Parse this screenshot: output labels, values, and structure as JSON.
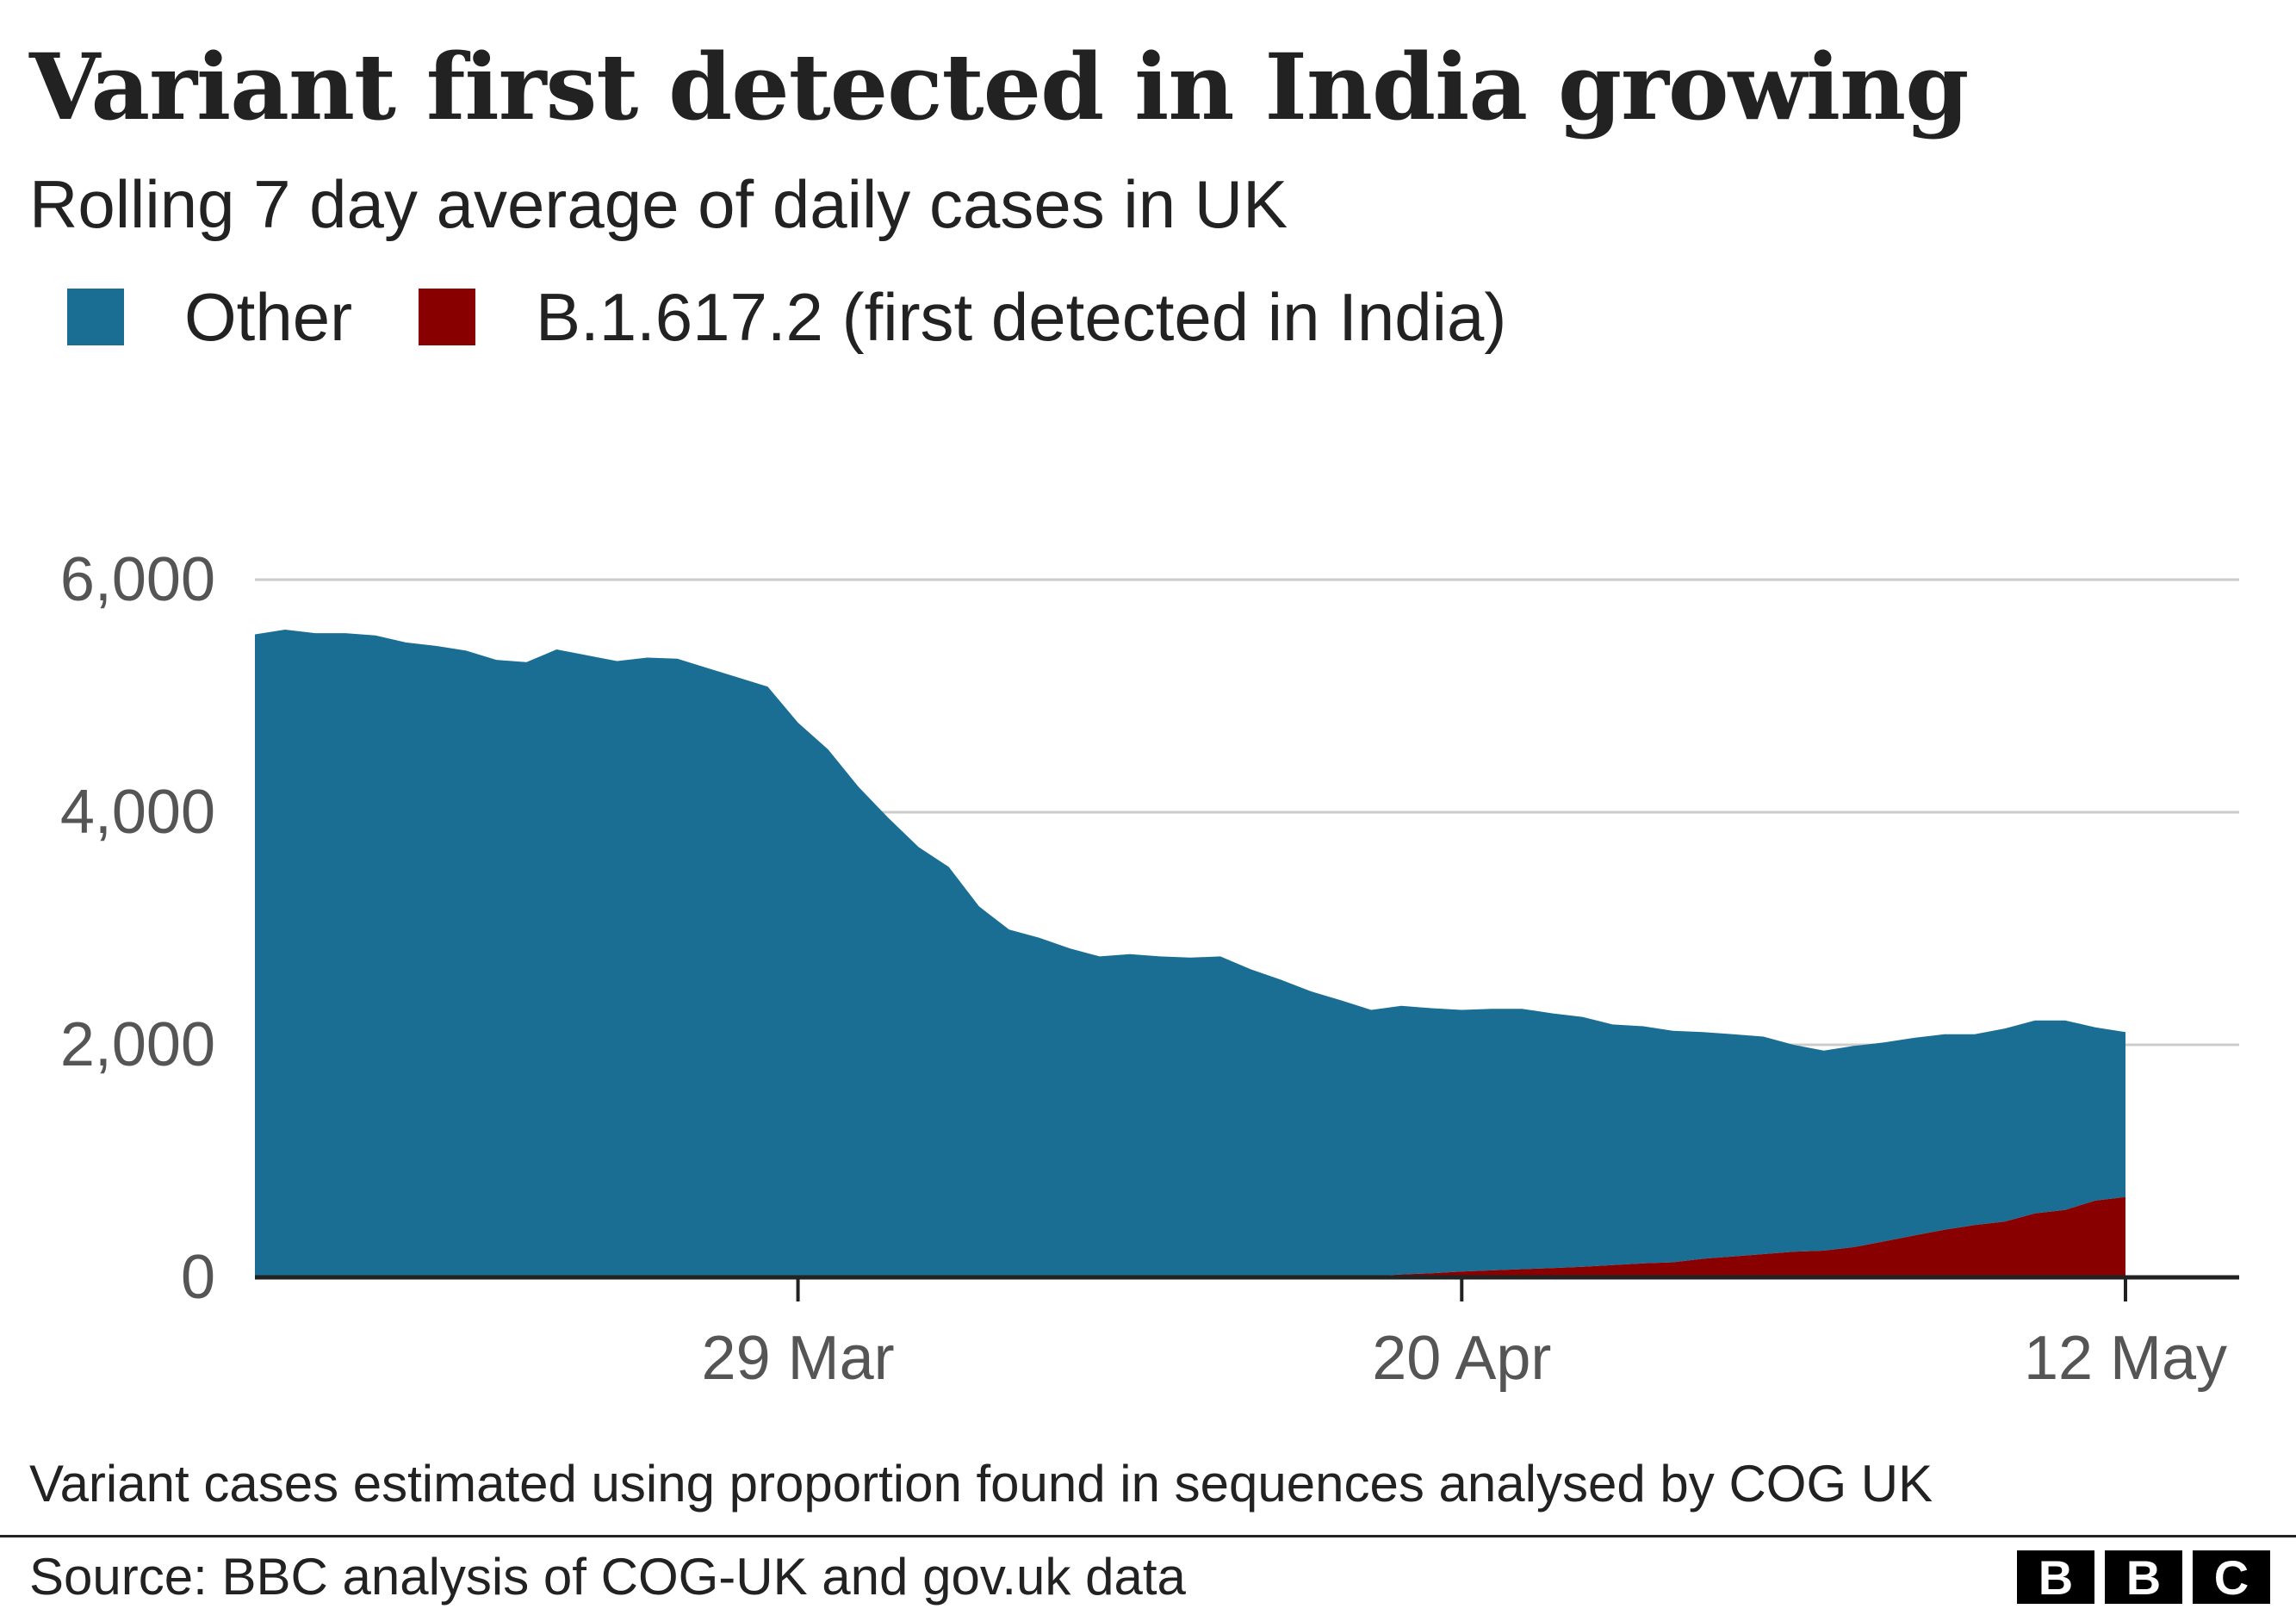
{
  "title": "Variant first detected in India growing",
  "subtitle": "Rolling 7 day average of daily cases in UK",
  "legend": {
    "other_label": "Other",
    "variant_label": "B.1.617.2 (first detected in India)"
  },
  "colors": {
    "other": "#1a6e93",
    "variant": "#890000",
    "gridline": "#cccccc",
    "axis": "#222222",
    "tick_text": "#555555"
  },
  "note": "Variant cases estimated using proportion found in sequences analysed by COG UK",
  "source": "Source: BBC analysis of COG-UK and gov.uk data",
  "logo": {
    "letters": [
      "B",
      "B",
      "C"
    ]
  },
  "chart_data": {
    "type": "area",
    "stacked": true,
    "title": "Variant first detected in India growing",
    "subtitle": "Rolling 7 day average of daily cases in UK",
    "xlabel": "",
    "ylabel": "",
    "ylim": [
      0,
      6000
    ],
    "yticks": [
      0,
      2000,
      4000,
      6000
    ],
    "ytick_labels": [
      "0",
      "2,000",
      "4,000",
      "6,000"
    ],
    "x_ticks": [
      {
        "date": "2021-03-29",
        "label": "29 Mar"
      },
      {
        "date": "2021-04-20",
        "label": "20 Apr"
      },
      {
        "date": "2021-05-12",
        "label": "12 May"
      }
    ],
    "grid": true,
    "legend_position": "top-left",
    "x": [
      "2021-03-11",
      "2021-03-12",
      "2021-03-13",
      "2021-03-14",
      "2021-03-15",
      "2021-03-16",
      "2021-03-17",
      "2021-03-18",
      "2021-03-19",
      "2021-03-20",
      "2021-03-21",
      "2021-03-22",
      "2021-03-23",
      "2021-03-24",
      "2021-03-25",
      "2021-03-26",
      "2021-03-27",
      "2021-03-28",
      "2021-03-29",
      "2021-03-30",
      "2021-03-31",
      "2021-04-01",
      "2021-04-02",
      "2021-04-03",
      "2021-04-04",
      "2021-04-05",
      "2021-04-06",
      "2021-04-07",
      "2021-04-08",
      "2021-04-09",
      "2021-04-10",
      "2021-04-11",
      "2021-04-12",
      "2021-04-13",
      "2021-04-14",
      "2021-04-15",
      "2021-04-16",
      "2021-04-17",
      "2021-04-18",
      "2021-04-19",
      "2021-04-20",
      "2021-04-21",
      "2021-04-22",
      "2021-04-23",
      "2021-04-24",
      "2021-04-25",
      "2021-04-26",
      "2021-04-27",
      "2021-04-28",
      "2021-04-29",
      "2021-04-30",
      "2021-05-01",
      "2021-05-02",
      "2021-05-03",
      "2021-05-04",
      "2021-05-05",
      "2021-05-06",
      "2021-05-07",
      "2021-05-08",
      "2021-05-09",
      "2021-05-10",
      "2021-05-11",
      "2021-05-12"
    ],
    "series": [
      {
        "name": "Other",
        "values": [
          5530,
          5570,
          5540,
          5540,
          5520,
          5460,
          5430,
          5390,
          5310,
          5290,
          5400,
          5350,
          5300,
          5330,
          5320,
          5240,
          5160,
          5080,
          4770,
          4540,
          4220,
          3950,
          3700,
          3530,
          3190,
          2990,
          2920,
          2830,
          2760,
          2780,
          2760,
          2750,
          2760,
          2650,
          2560,
          2460,
          2380,
          2290,
          2310,
          2280,
          2250,
          2250,
          2240,
          2190,
          2150,
          2070,
          2040,
          1990,
          1950,
          1910,
          1870,
          1780,
          1720,
          1730,
          1710,
          1700,
          1680,
          1640,
          1660,
          1660,
          1630,
          1490,
          1420
        ]
      },
      {
        "name": "B.1.617.2 (first detected in India)",
        "values": [
          0,
          0,
          0,
          0,
          0,
          0,
          0,
          0,
          0,
          0,
          0,
          0,
          0,
          0,
          0,
          0,
          0,
          0,
          0,
          0,
          0,
          0,
          0,
          0,
          0,
          0,
          0,
          0,
          0,
          0,
          0,
          0,
          0,
          0,
          0,
          0,
          2,
          10,
          25,
          35,
          50,
          60,
          70,
          80,
          90,
          105,
          120,
          130,
          160,
          180,
          200,
          220,
          230,
          260,
          310,
          360,
          410,
          450,
          480,
          550,
          580,
          660,
          690
        ]
      }
    ]
  }
}
